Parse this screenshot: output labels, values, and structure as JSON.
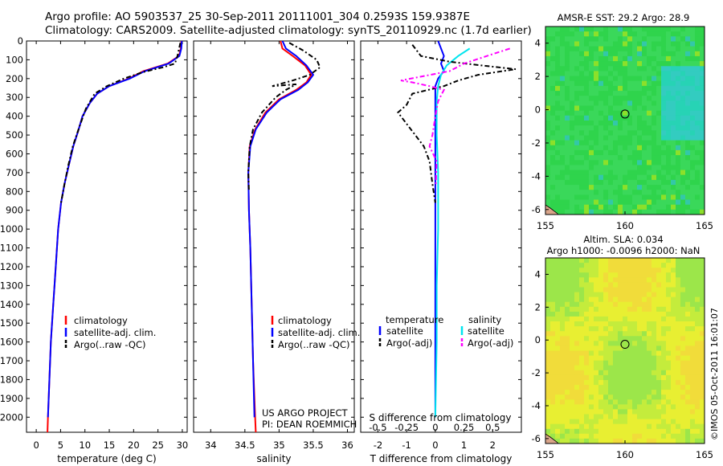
{
  "header": {
    "line1": "Argo profile: AO 5903537_25 30-Sep-2011 20111001_304 0.2593S 159.9387E",
    "line2": "Climatology: CARS2009. Satellite-adjusted climatology: synTS_20110929.nc (1.7d earlier)"
  },
  "colors": {
    "climatology": "#ff0000",
    "satellite": "#0000ff",
    "argo": "#000000",
    "sal_satellite": "#00e5ee",
    "sal_argo": "#ff00ff"
  },
  "chart_data": [
    {
      "type": "line",
      "panel": "temperature",
      "xlabel": "temperature (deg C)",
      "xlim": [
        -2,
        31
      ],
      "xticks": [
        0,
        5,
        10,
        15,
        20,
        25,
        30
      ],
      "ylim": [
        2080,
        0
      ],
      "yticks": [
        0,
        100,
        200,
        300,
        400,
        500,
        600,
        700,
        800,
        900,
        1000,
        1100,
        1200,
        1300,
        1400,
        1500,
        1600,
        1700,
        1800,
        1900,
        2000
      ],
      "legend": [
        "climatology",
        "satellite-adj. clim.",
        "Argo(..raw -QC)"
      ],
      "series": [
        {
          "name": "climatology",
          "color": "#ff0000",
          "style": "solid",
          "points": [
            [
              29.8,
              0
            ],
            [
              29.7,
              40
            ],
            [
              29.3,
              80
            ],
            [
              27,
              120
            ],
            [
              22,
              160
            ],
            [
              19,
              200
            ],
            [
              15,
              240
            ],
            [
              12.5,
              280
            ],
            [
              11,
              330
            ],
            [
              9.5,
              400
            ],
            [
              8.6,
              480
            ],
            [
              7.6,
              560
            ],
            [
              6.7,
              660
            ],
            [
              5.8,
              760
            ],
            [
              5.1,
              860
            ],
            [
              4.5,
              1000
            ],
            [
              4,
              1200
            ],
            [
              3.5,
              1400
            ],
            [
              3,
              1600
            ],
            [
              2.7,
              1800
            ],
            [
              2.4,
              2000
            ],
            [
              2.3,
              2080
            ]
          ]
        },
        {
          "name": "satellite-adj. clim.",
          "color": "#0000ff",
          "style": "solid",
          "points": [
            [
              29.9,
              0
            ],
            [
              29.8,
              40
            ],
            [
              29.4,
              80
            ],
            [
              27.2,
              120
            ],
            [
              22.3,
              160
            ],
            [
              19.2,
              200
            ],
            [
              15,
              240
            ],
            [
              12.5,
              280
            ],
            [
              11,
              330
            ],
            [
              9.5,
              400
            ],
            [
              8.6,
              480
            ],
            [
              7.6,
              560
            ],
            [
              6.7,
              660
            ],
            [
              5.8,
              760
            ],
            [
              5.1,
              860
            ],
            [
              4.5,
              1000
            ],
            [
              4,
              1200
            ],
            [
              3.5,
              1400
            ],
            [
              3,
              1600
            ],
            [
              2.7,
              1800
            ],
            [
              2.4,
              2000
            ]
          ]
        },
        {
          "name": "Argo(..raw -QC)",
          "color": "#000000",
          "style": "dashed",
          "points": [
            [
              29.6,
              10
            ],
            [
              29,
              80
            ],
            [
              28.5,
              120
            ],
            [
              26,
              140
            ],
            [
              22,
              165
            ],
            [
              18,
              200
            ],
            [
              14.5,
              240
            ],
            [
              12,
              280
            ],
            [
              10.2,
              360
            ],
            [
              8.8,
              460
            ],
            [
              7.5,
              560
            ],
            [
              6.6,
              660
            ],
            [
              5.8,
              760
            ],
            [
              5.1,
              860
            ]
          ]
        }
      ]
    },
    {
      "type": "line",
      "panel": "salinity",
      "xlabel": "salinity",
      "xlim": [
        33.75,
        36.1
      ],
      "xticks": [
        34,
        34.5,
        35,
        35.5,
        36
      ],
      "ylim": [
        2080,
        0
      ],
      "legend": [
        "climatology",
        "satellite-adj. clim.",
        "Argo(..raw -QC)"
      ],
      "annotation": [
        "US ARGO PROJECT",
        "PI: DEAN ROEMMICH"
      ],
      "series": [
        {
          "name": "climatology",
          "color": "#ff0000",
          "style": "solid",
          "points": [
            [
              35.02,
              0
            ],
            [
              35.05,
              40
            ],
            [
              35.2,
              80
            ],
            [
              35.38,
              130
            ],
            [
              35.47,
              180
            ],
            [
              35.4,
              220
            ],
            [
              35.25,
              260
            ],
            [
              35.0,
              310
            ],
            [
              34.8,
              380
            ],
            [
              34.65,
              470
            ],
            [
              34.57,
              560
            ],
            [
              34.55,
              700
            ],
            [
              34.56,
              900
            ],
            [
              34.58,
              1100
            ],
            [
              34.6,
              1400
            ],
            [
              34.62,
              1700
            ],
            [
              34.65,
              2000
            ],
            [
              34.66,
              2080
            ]
          ]
        },
        {
          "name": "satellite-adj. clim.",
          "color": "#0000ff",
          "style": "solid",
          "points": [
            [
              35.05,
              0
            ],
            [
              35.1,
              40
            ],
            [
              35.25,
              80
            ],
            [
              35.4,
              130
            ],
            [
              35.5,
              180
            ],
            [
              35.42,
              220
            ],
            [
              35.28,
              260
            ],
            [
              35.02,
              310
            ],
            [
              34.82,
              380
            ],
            [
              34.66,
              470
            ],
            [
              34.58,
              560
            ],
            [
              34.55,
              700
            ],
            [
              34.56,
              900
            ],
            [
              34.58,
              1100
            ],
            [
              34.6,
              1400
            ],
            [
              34.62,
              1700
            ],
            [
              34.64,
              2000
            ]
          ]
        },
        {
          "name": "Argo(..raw -QC)",
          "color": "#000000",
          "style": "dashed",
          "points": [
            [
              35.15,
              10
            ],
            [
              35.35,
              50
            ],
            [
              35.55,
              100
            ],
            [
              35.6,
              140
            ],
            [
              35.45,
              180
            ],
            [
              35.2,
              210
            ],
            [
              34.9,
              240
            ],
            [
              35.25,
              230
            ],
            [
              35.1,
              260
            ],
            [
              34.95,
              300
            ],
            [
              34.75,
              380
            ],
            [
              34.62,
              470
            ],
            [
              34.57,
              560
            ],
            [
              34.55,
              700
            ],
            [
              34.56,
              800
            ]
          ]
        }
      ]
    },
    {
      "type": "line",
      "panel": "difference",
      "xlabel": "T difference from climatology",
      "xlabel2": "S difference from climatology",
      "xlim": [
        -2.6,
        3
      ],
      "xticks": [
        -2,
        -1,
        0,
        1,
        2
      ],
      "xticks2": [
        -0.5,
        -0.25,
        0,
        0.25,
        0.5
      ],
      "ylim": [
        2080,
        0
      ],
      "legend_temperature": [
        "temperature",
        "satellite",
        "Argo(-adj)"
      ],
      "legend_salinity": [
        "salinity",
        "satellite",
        "Argo(-adj)"
      ],
      "series": [
        {
          "name": "T satellite",
          "color": "#0000ff",
          "style": "solid",
          "points": [
            [
              0.1,
              0
            ],
            [
              0.2,
              40
            ],
            [
              0.3,
              80
            ],
            [
              0.2,
              120
            ],
            [
              0.3,
              160
            ],
            [
              0.1,
              200
            ],
            [
              0,
              240
            ],
            [
              0,
              300
            ],
            [
              0,
              500
            ],
            [
              0,
              800
            ],
            [
              0,
              1200
            ],
            [
              0,
              1600
            ],
            [
              0,
              2000
            ]
          ]
        },
        {
          "name": "S satellite",
          "color": "#00e5ee",
          "style": "solid",
          "points": [
            [
              1.2,
              40
            ],
            [
              0.8,
              80
            ],
            [
              0.4,
              130
            ],
            [
              0.2,
              180
            ],
            [
              0.1,
              240
            ],
            [
              0.05,
              320
            ],
            [
              0.05,
              500
            ],
            [
              0.1,
              700
            ],
            [
              0.1,
              1000
            ],
            [
              0.05,
              1300
            ],
            [
              0.05,
              1600
            ],
            [
              0,
              2000
            ]
          ]
        },
        {
          "name": "T Argo(-adj)",
          "color": "#000000",
          "style": "dashed",
          "points": [
            [
              -0.8,
              20
            ],
            [
              -0.5,
              80
            ],
            [
              0.5,
              110
            ],
            [
              1.6,
              130
            ],
            [
              2.8,
              150
            ],
            [
              1.5,
              180
            ],
            [
              0.8,
              210
            ],
            [
              0.3,
              240
            ],
            [
              -0.8,
              280
            ],
            [
              -1,
              340
            ],
            [
              -1.3,
              380
            ],
            [
              -1,
              440
            ],
            [
              -0.7,
              500
            ],
            [
              -0.4,
              560
            ],
            [
              -0.2,
              640
            ],
            [
              -0.1,
              760
            ],
            [
              0,
              860
            ]
          ]
        },
        {
          "name": "S Argo(-adj)",
          "color": "#ff00ff",
          "style": "dashed",
          "points": [
            [
              2.6,
              40
            ],
            [
              1.8,
              80
            ],
            [
              1.0,
              120
            ],
            [
              0.5,
              160
            ],
            [
              -1.2,
              210
            ],
            [
              -0.8,
              220
            ],
            [
              -0.2,
              240
            ],
            [
              0.3,
              260
            ],
            [
              0.1,
              320
            ],
            [
              0,
              400
            ],
            [
              -0.1,
              500
            ],
            [
              -0.2,
              560
            ],
            [
              0.05,
              640
            ],
            [
              0.02,
              760
            ]
          ]
        }
      ]
    },
    {
      "type": "heatmap",
      "panel": "sst-map",
      "title": "AMSR-E SST: 29.2 Argo: 28.9",
      "xlim": [
        155,
        165
      ],
      "ylim": [
        -6.3,
        5
      ],
      "xticks": [
        155,
        160,
        165
      ],
      "yticks": [
        -6,
        -4,
        -2,
        0,
        2,
        4
      ],
      "marker": [
        160,
        -0.26
      ]
    },
    {
      "type": "heatmap",
      "panel": "sla-map",
      "title": "Altim. SLA: 0.034",
      "subtitle": "Argo h1000: -0.0096 h2000: NaN",
      "xlim": [
        155,
        165
      ],
      "ylim": [
        -6.3,
        5
      ],
      "xticks": [
        155,
        160,
        165
      ],
      "yticks": [
        -6,
        -4,
        -2,
        0,
        2,
        4
      ],
      "marker": [
        160,
        -0.26
      ]
    }
  ],
  "stamp": "©IMOS 05-Oct-2011 16:01:07"
}
